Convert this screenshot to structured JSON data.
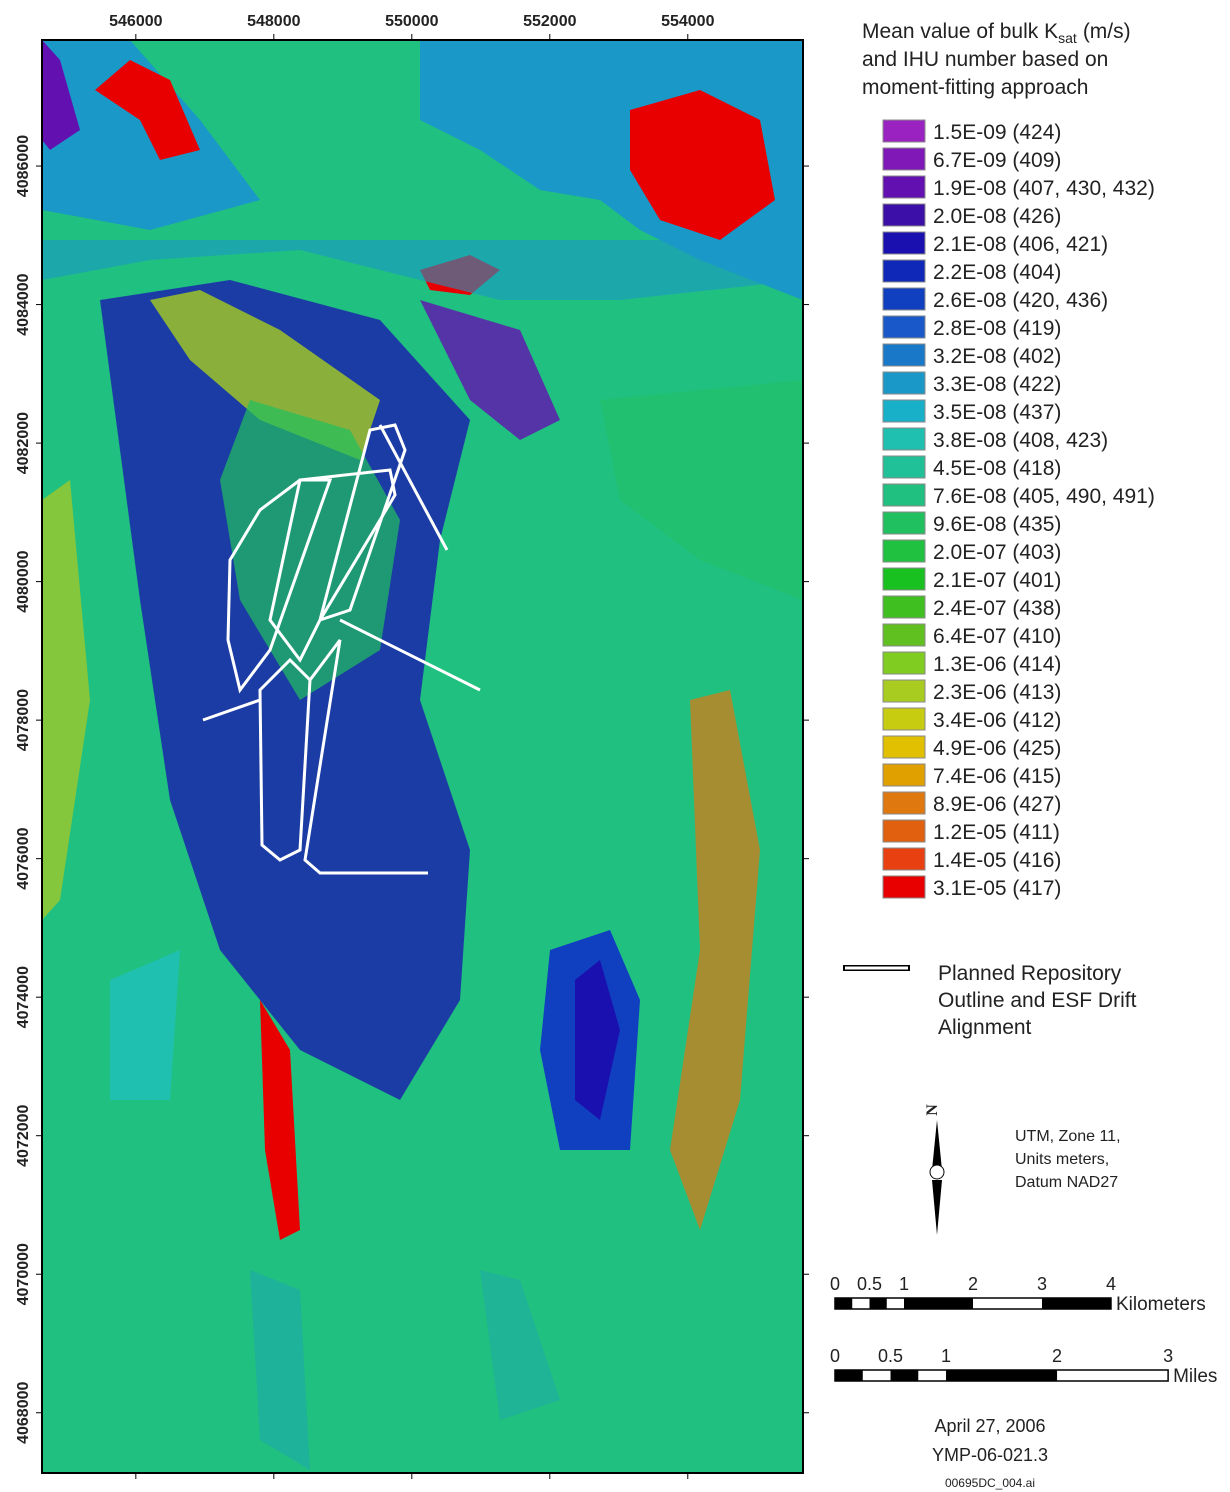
{
  "map": {
    "xlim": [
      544640,
      555670
    ],
    "ylim": [
      4067130,
      4087820
    ],
    "xticks": [
      546000,
      548000,
      550000,
      552000,
      554000
    ],
    "yticks": [
      4068000,
      4070000,
      4072000,
      4074000,
      4076000,
      4078000,
      4080000,
      4082000,
      4084000,
      4086000
    ]
  },
  "legend": {
    "title": {
      "before": "Mean value of bulk K",
      "subscript": "sat",
      "after": "(m/s)",
      "line2": "and IHU number based on",
      "line3": "moment-fitting approach"
    },
    "entries": [
      {
        "label": "1.5E-09 (424)",
        "color": "#9a22c0"
      },
      {
        "label": "6.7E-09 (409)",
        "color": "#8018b8"
      },
      {
        "label": "1.9E-08 (407, 430, 432)",
        "color": "#6210b0"
      },
      {
        "label": "2.0E-08 (426)",
        "color": "#3c10a8"
      },
      {
        "label": "2.1E-08 (406, 421)",
        "color": "#1a10b0"
      },
      {
        "label": "2.2E-08 (404)",
        "color": "#1028b8"
      },
      {
        "label": "2.6E-08 (420, 436)",
        "color": "#1040c0"
      },
      {
        "label": "2.8E-08 (419)",
        "color": "#1858c8"
      },
      {
        "label": "3.2E-08 (402)",
        "color": "#1a78c8"
      },
      {
        "label": "3.3E-08 (422)",
        "color": "#1a98c8"
      },
      {
        "label": "3.5E-08 (437)",
        "color": "#18b0c8"
      },
      {
        "label": "3.8E-08 (408, 423)",
        "color": "#20c0b0"
      },
      {
        "label": "4.5E-08 (418)",
        "color": "#20c098"
      },
      {
        "label": "7.6E-08 (405, 490, 491)",
        "color": "#20c080"
      },
      {
        "label": "9.6E-08 (435)",
        "color": "#20c060"
      },
      {
        "label": "2.0E-07 (403)",
        "color": "#20c040"
      },
      {
        "label": "2.1E-07 (401)",
        "color": "#18c020"
      },
      {
        "label": "2.4E-07 (438)",
        "color": "#40c020"
      },
      {
        "label": "6.4E-07 (410)",
        "color": "#60c020"
      },
      {
        "label": "1.3E-06 (414)",
        "color": "#80cc20"
      },
      {
        "label": "2.3E-06 (413)",
        "color": "#a8cc20"
      },
      {
        "label": "3.4E-06 (412)",
        "color": "#c8cc10"
      },
      {
        "label": "4.9E-06 (425)",
        "color": "#e0c000"
      },
      {
        "label": "7.4E-06 (415)",
        "color": "#e0a000"
      },
      {
        "label": "8.9E-06 (427)",
        "color": "#e07810"
      },
      {
        "label": "1.2E-05 (411)",
        "color": "#e06010"
      },
      {
        "label": "1.4E-05 (416)",
        "color": "#e84010"
      },
      {
        "label": "3.1E-05 (417)",
        "color": "#e80000"
      }
    ],
    "repository": [
      "Planned Repository",
      "Outline and ESF Drift",
      "Alignment"
    ]
  },
  "north": "N",
  "projection": [
    "UTM, Zone 11,",
    "Units meters,",
    "Datum NAD27"
  ],
  "scale_km": {
    "ticks": [
      0,
      0.5,
      1,
      2,
      3,
      4
    ],
    "unit": "Kilometers"
  },
  "scale_mi": {
    "ticks": [
      0,
      0.5,
      1,
      2,
      3
    ],
    "unit": "Miles"
  },
  "footer": {
    "date": "April 27, 2006",
    "doc_id": "YMP-06-021.3",
    "file": "00695DC_004.ai"
  }
}
